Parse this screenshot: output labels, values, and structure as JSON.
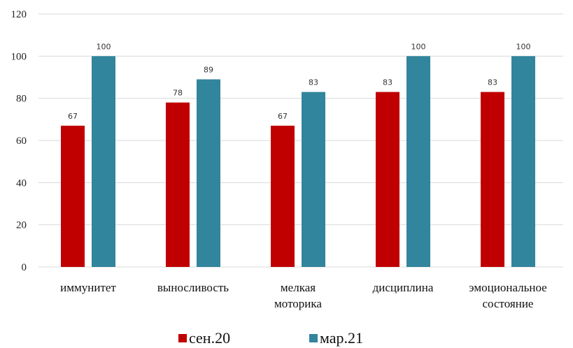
{
  "chart_data": {
    "type": "bar",
    "categories": [
      [
        "иммунитет"
      ],
      [
        "выносливость"
      ],
      [
        "мелкая",
        "моторика"
      ],
      [
        "дисциплина"
      ],
      [
        "эмоциональное",
        "состояние"
      ]
    ],
    "series": [
      {
        "name": "сен.20",
        "color": "#c00000",
        "values": [
          67,
          78,
          67,
          83,
          83
        ]
      },
      {
        "name": "мар.21",
        "color": "#31859c",
        "values": [
          100,
          89,
          83,
          100,
          100
        ]
      }
    ],
    "yticks": [
      0,
      20,
      40,
      60,
      80,
      100,
      120
    ],
    "ylim": [
      0,
      120
    ],
    "grid": true,
    "legend": "bottom-center",
    "title": "",
    "xlabel": "",
    "ylabel": ""
  }
}
